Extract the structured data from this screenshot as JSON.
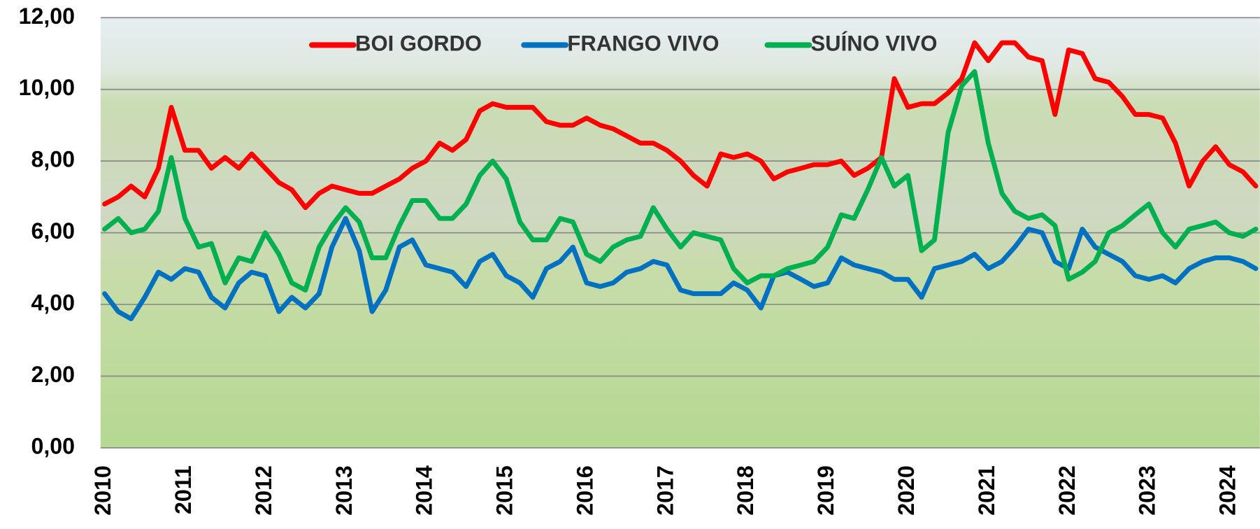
{
  "chart_data": {
    "type": "line",
    "x": [
      2010,
      2010.17,
      2010.33,
      2010.5,
      2010.67,
      2010.83,
      2011,
      2011.17,
      2011.33,
      2011.5,
      2011.67,
      2011.83,
      2012,
      2012.17,
      2012.33,
      2012.5,
      2012.67,
      2012.83,
      2013,
      2013.17,
      2013.33,
      2013.5,
      2013.67,
      2013.83,
      2014,
      2014.17,
      2014.33,
      2014.5,
      2014.67,
      2014.83,
      2015,
      2015.17,
      2015.33,
      2015.5,
      2015.67,
      2015.83,
      2016,
      2016.17,
      2016.33,
      2016.5,
      2016.67,
      2016.83,
      2017,
      2017.17,
      2017.33,
      2017.5,
      2017.67,
      2017.83,
      2018,
      2018.17,
      2018.33,
      2018.5,
      2018.67,
      2018.83,
      2019,
      2019.17,
      2019.33,
      2019.5,
      2019.67,
      2019.83,
      2020,
      2020.17,
      2020.33,
      2020.5,
      2020.67,
      2020.83,
      2021,
      2021.17,
      2021.33,
      2021.5,
      2021.67,
      2021.83,
      2022,
      2022.17,
      2022.33,
      2022.5,
      2022.67,
      2022.83,
      2023,
      2023.17,
      2023.33,
      2023.5,
      2023.67,
      2023.83,
      2024,
      2024.17,
      2024.33
    ],
    "series": [
      {
        "name": "BOI GORDO",
        "color": "#ff0000",
        "values": [
          6.8,
          7.0,
          7.3,
          7.0,
          7.8,
          9.5,
          8.3,
          8.3,
          7.8,
          8.1,
          7.8,
          8.2,
          7.8,
          7.4,
          7.2,
          6.7,
          7.1,
          7.3,
          7.2,
          7.1,
          7.1,
          7.3,
          7.5,
          7.8,
          8.0,
          8.5,
          8.3,
          8.6,
          9.4,
          9.6,
          9.5,
          9.5,
          9.5,
          9.1,
          9.0,
          9.0,
          9.2,
          9.0,
          8.9,
          8.7,
          8.5,
          8.5,
          8.3,
          8.0,
          7.6,
          7.3,
          8.2,
          8.1,
          8.2,
          8.0,
          7.5,
          7.7,
          7.8,
          7.9,
          7.9,
          8.0,
          7.6,
          7.8,
          8.1,
          10.3,
          9.5,
          9.6,
          9.6,
          9.9,
          10.3,
          11.3,
          10.8,
          11.3,
          11.3,
          10.9,
          10.8,
          9.3,
          11.1,
          11.0,
          10.3,
          10.2,
          9.8,
          9.3,
          9.3,
          9.2,
          8.5,
          7.3,
          8.0,
          8.4,
          7.9,
          7.7,
          7.3
        ]
      },
      {
        "name": "FRANGO VIVO",
        "color": "#0070c0",
        "values": [
          4.3,
          3.8,
          3.6,
          4.2,
          4.9,
          4.7,
          5.0,
          4.9,
          4.2,
          3.9,
          4.6,
          4.9,
          4.8,
          3.8,
          4.2,
          3.9,
          4.3,
          5.6,
          6.4,
          5.5,
          3.8,
          4.4,
          5.6,
          5.8,
          5.1,
          5.0,
          4.9,
          4.5,
          5.2,
          5.4,
          4.8,
          4.6,
          4.2,
          5.0,
          5.2,
          5.6,
          4.6,
          4.5,
          4.6,
          4.9,
          5.0,
          5.2,
          5.1,
          4.4,
          4.3,
          4.3,
          4.3,
          4.6,
          4.4,
          3.9,
          4.8,
          4.9,
          4.7,
          4.5,
          4.6,
          5.3,
          5.1,
          5.0,
          4.9,
          4.7,
          4.7,
          4.2,
          5.0,
          5.1,
          5.2,
          5.4,
          5.0,
          5.2,
          5.6,
          6.1,
          6.0,
          5.2,
          5.0,
          6.1,
          5.6,
          5.4,
          5.2,
          4.8,
          4.7,
          4.8,
          4.6,
          5.0,
          5.2,
          5.3,
          5.3,
          5.2,
          5.0
        ]
      },
      {
        "name": "SUÍNO VIVO",
        "color": "#00b050",
        "values": [
          6.1,
          6.4,
          6.0,
          6.1,
          6.6,
          8.1,
          6.4,
          5.6,
          5.7,
          4.6,
          5.3,
          5.2,
          6.0,
          5.4,
          4.6,
          4.4,
          5.6,
          6.2,
          6.7,
          6.3,
          5.3,
          5.3,
          6.2,
          6.9,
          6.9,
          6.4,
          6.4,
          6.8,
          7.6,
          8.0,
          7.5,
          6.3,
          5.8,
          5.8,
          6.4,
          6.3,
          5.4,
          5.2,
          5.6,
          5.8,
          5.9,
          6.7,
          6.1,
          5.6,
          6.0,
          5.9,
          5.8,
          5.0,
          4.6,
          4.8,
          4.8,
          5.0,
          5.1,
          5.2,
          5.6,
          6.5,
          6.4,
          7.2,
          8.1,
          7.3,
          7.6,
          5.5,
          5.8,
          8.8,
          10.1,
          10.5,
          8.5,
          7.1,
          6.6,
          6.4,
          6.5,
          6.2,
          4.7,
          4.9,
          5.2,
          6.0,
          6.2,
          6.5,
          6.8,
          6.0,
          5.6,
          6.1,
          6.2,
          6.3,
          6.0,
          5.9,
          6.1
        ]
      }
    ],
    "xlim": [
      2009.95,
      2024.38
    ],
    "xticks": [
      2010,
      2011,
      2012,
      2013,
      2014,
      2015,
      2016,
      2017,
      2018,
      2019,
      2020,
      2021,
      2022,
      2023,
      2024
    ],
    "ylim": [
      0,
      12
    ],
    "yticks": [
      {
        "value": 0,
        "label": "0,00"
      },
      {
        "value": 2,
        "label": "2,00"
      },
      {
        "value": 4,
        "label": "4,00"
      },
      {
        "value": 6,
        "label": "6,00"
      },
      {
        "value": 8,
        "label": "8,00"
      },
      {
        "value": 10,
        "label": "10,00"
      },
      {
        "value": 12,
        "label": "12,00"
      }
    ],
    "grid": true,
    "legend": "top"
  }
}
